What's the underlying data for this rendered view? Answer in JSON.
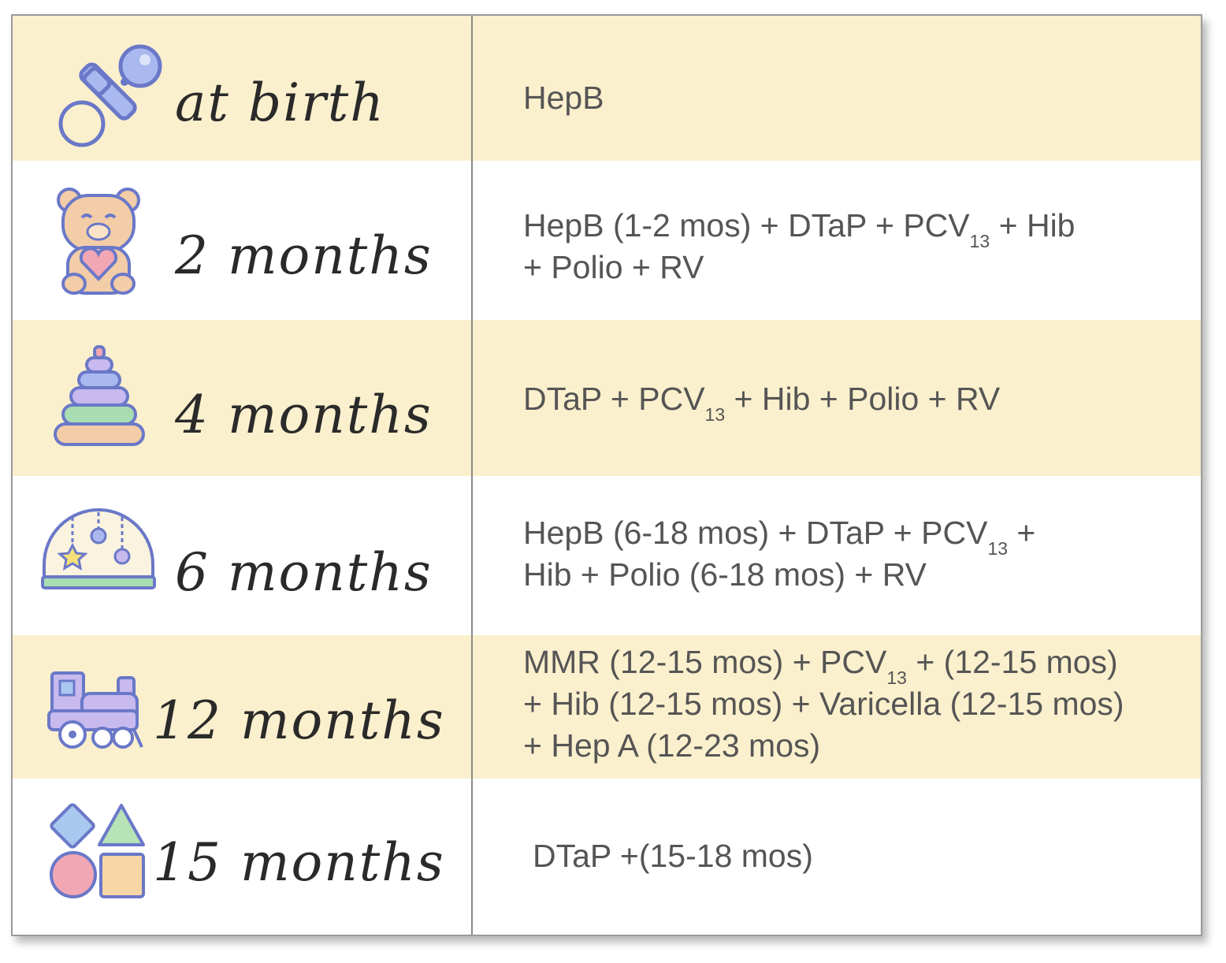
{
  "rows": [
    {
      "label": "at birth",
      "icon": "pacifier-icon",
      "line1": "HepB"
    },
    {
      "label": "2 months",
      "icon": "teddy-bear-icon",
      "l1a": "HepB (1-2 mos) + DTaP + PCV",
      "l1sub": "13",
      "l1b": " + Hib",
      "line2": "+ Polio + RV"
    },
    {
      "label": "4 months",
      "icon": "stacking-rings-icon",
      "l1a": "DTaP + PCV",
      "l1sub": "13",
      "l1b": " + Hib + Polio + RV"
    },
    {
      "label": "6 months",
      "icon": "baby-gym-icon",
      "l1a": "HepB (6-18 mos) + DTaP + PCV",
      "l1sub": "13",
      "l1b": " +",
      "line2": "Hib + Polio (6-18 mos) + RV"
    },
    {
      "label": "12 months",
      "icon": "toy-train-icon",
      "l1a": "MMR (12-15 mos) + PCV",
      "l1sub": "13",
      "l1b": " + (12-15 mos)",
      "line2": "+ Hib (12-15 mos) + Varicella (12-15 mos)",
      "line3": "+ Hep A (12-23 mos)"
    },
    {
      "label": "15 months",
      "icon": "shape-sorter-icon",
      "line1": "DTaP +(15-18 mos)"
    }
  ],
  "colors": {
    "cream": "#fbf0cd",
    "white": "#ffffff",
    "text": "#555555",
    "label": "#2a2a2a"
  }
}
